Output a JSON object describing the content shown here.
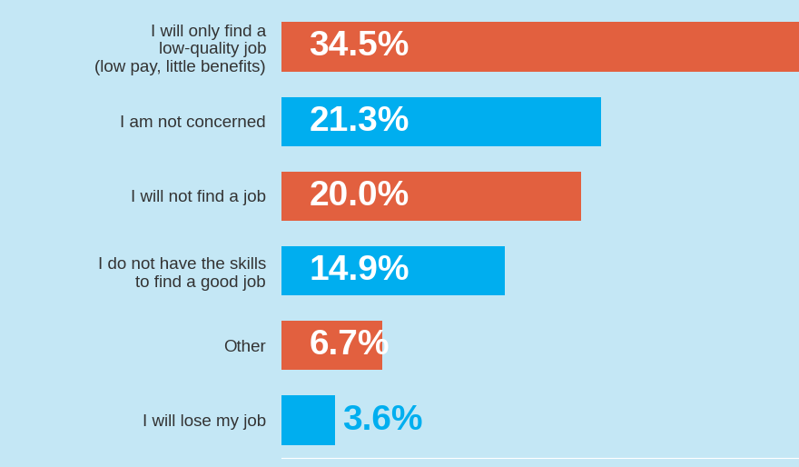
{
  "chart_data": {
    "type": "bar",
    "orientation": "horizontal",
    "categories": [
      "I will only find a\nlow-quality job\n(low pay, little benefits)",
      "I am not concerned",
      "I will not find a job",
      "I do not have the skills\nto find a good job",
      "Other",
      "I will lose my job"
    ],
    "values": [
      34.5,
      21.3,
      20.0,
      14.9,
      6.7,
      3.6
    ],
    "value_labels": [
      "34.5%",
      "21.3%",
      "20.0%",
      "14.9%",
      "6.7%",
      "3.6%"
    ],
    "colors": [
      "#e2603f",
      "#00aeef",
      "#e2603f",
      "#00aeef",
      "#e2603f",
      "#00aeef"
    ],
    "xlim": [
      0,
      34.5
    ],
    "data_labels": true,
    "tick_labels": "y",
    "grid": false
  }
}
